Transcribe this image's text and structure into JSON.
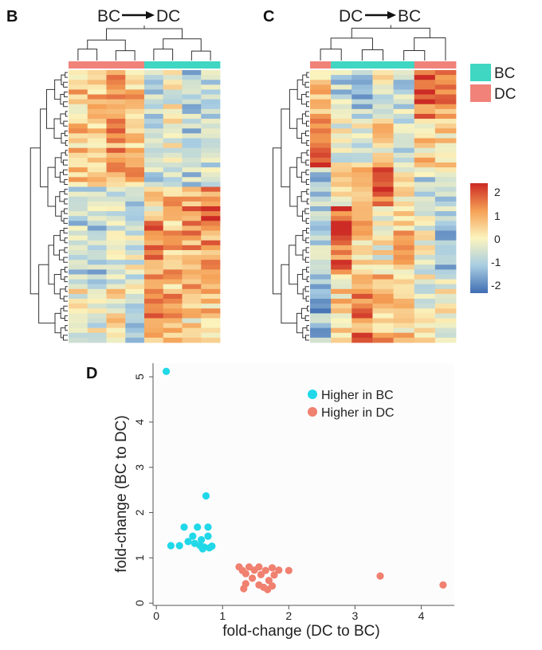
{
  "panels": {
    "b": {
      "label": "B",
      "title_left": "BC",
      "title_right": "DC",
      "groups": [
        "DC",
        "DC",
        "DC",
        "DC",
        "BC",
        "BC",
        "BC",
        "BC"
      ]
    },
    "c": {
      "label": "C",
      "title_left": "DC",
      "title_right": "BC",
      "groups": [
        "DC",
        "BC",
        "BC",
        "BC",
        "BC",
        "DC",
        "DC"
      ]
    },
    "d": {
      "label": "D"
    }
  },
  "group_legend": {
    "items": [
      {
        "label": "BC",
        "color": "#3fd6c2"
      },
      {
        "label": "DC",
        "color": "#f0827a"
      }
    ]
  },
  "color_scale": {
    "ticks": [
      "2",
      "1",
      "0",
      "-1",
      "-2"
    ],
    "min": -2,
    "max": 2,
    "stops": [
      "#3f6db2",
      "#a8cde2",
      "#fbf4be",
      "#f5a055",
      "#cc2a24"
    ]
  },
  "chart_data": [
    {
      "type": "heatmap",
      "panel": "B",
      "title": "BC → DC",
      "columns": 8,
      "rows": 56,
      "column_groups": [
        "DC",
        "DC",
        "DC",
        "DC",
        "BC",
        "BC",
        "BC",
        "BC"
      ],
      "row_blocks": [
        {
          "from_row": 0,
          "to_row": 24,
          "pattern": [
            0.5,
            0.7,
            1.0,
            0.6,
            -0.6,
            -0.2,
            -0.9,
            -0.5
          ]
        },
        {
          "from_row": 24,
          "to_row": 31,
          "pattern": [
            -0.9,
            -0.6,
            -0.5,
            -0.7,
            0.3,
            0.6,
            1.0,
            1.3
          ]
        },
        {
          "from_row": 31,
          "to_row": 45,
          "pattern": [
            -0.7,
            -0.8,
            -0.5,
            -0.3,
            1.1,
            0.6,
            0.9,
            1.0
          ]
        },
        {
          "from_row": 45,
          "to_row": 56,
          "pattern": [
            0.0,
            -0.3,
            0.1,
            -0.6,
            1.0,
            0.8,
            0.3,
            0.5
          ]
        }
      ],
      "value_range": [
        -2,
        2
      ]
    },
    {
      "type": "heatmap",
      "panel": "C",
      "title": "DC → BC",
      "columns": 7,
      "rows": 56,
      "column_groups": [
        "DC",
        "BC",
        "BC",
        "BC",
        "BC",
        "DC",
        "DC"
      ],
      "row_blocks": [
        {
          "from_row": 0,
          "to_row": 10,
          "pattern": [
            0.4,
            -0.7,
            -0.9,
            -0.2,
            -0.6,
            1.5,
            1.0
          ]
        },
        {
          "from_row": 10,
          "to_row": 20,
          "pattern": [
            1.6,
            -0.2,
            -0.3,
            0.2,
            -0.5,
            0.4,
            0.2
          ]
        },
        {
          "from_row": 20,
          "to_row": 28,
          "pattern": [
            -0.9,
            0.3,
            0.6,
            1.4,
            0.2,
            -0.6,
            -0.5
          ]
        },
        {
          "from_row": 28,
          "to_row": 42,
          "pattern": [
            -0.6,
            1.3,
            0.5,
            0.0,
            0.6,
            -0.3,
            -0.9
          ]
        },
        {
          "from_row": 42,
          "to_row": 56,
          "pattern": [
            -1.2,
            0.4,
            1.2,
            0.7,
            0.4,
            -0.1,
            -0.2
          ]
        }
      ],
      "value_range": [
        -2,
        2
      ]
    },
    {
      "type": "scatter",
      "panel": "D",
      "xlabel": "fold-change (DC to BC)",
      "ylabel": "fold-change (BC to DC)",
      "xlim": [
        -0.05,
        4.5
      ],
      "ylim": [
        -0.05,
        5.3
      ],
      "xticks": [
        "0",
        "1",
        "2",
        "3",
        "4"
      ],
      "yticks": [
        "0",
        "1",
        "2",
        "3",
        "4",
        "5"
      ],
      "legend_position": "top-right",
      "series": [
        {
          "name": "Higher in BC",
          "color": "#20d8e8",
          "points": [
            {
              "x": 0.15,
              "y": 5.12
            },
            {
              "x": 0.75,
              "y": 2.37
            },
            {
              "x": 0.42,
              "y": 1.68
            },
            {
              "x": 0.62,
              "y": 1.68
            },
            {
              "x": 0.78,
              "y": 1.68
            },
            {
              "x": 0.55,
              "y": 1.48
            },
            {
              "x": 0.78,
              "y": 1.48
            },
            {
              "x": 0.48,
              "y": 1.36
            },
            {
              "x": 0.68,
              "y": 1.4
            },
            {
              "x": 0.58,
              "y": 1.32
            },
            {
              "x": 0.22,
              "y": 1.27
            },
            {
              "x": 0.35,
              "y": 1.27
            },
            {
              "x": 0.66,
              "y": 1.27
            },
            {
              "x": 0.72,
              "y": 1.24
            },
            {
              "x": 0.8,
              "y": 1.22
            },
            {
              "x": 0.84,
              "y": 1.26
            },
            {
              "x": 0.7,
              "y": 1.2
            }
          ]
        },
        {
          "name": "Higher in DC",
          "color": "#f0806f",
          "points": [
            {
              "x": 1.25,
              "y": 0.8
            },
            {
              "x": 1.4,
              "y": 0.8
            },
            {
              "x": 1.55,
              "y": 0.8
            },
            {
              "x": 1.75,
              "y": 0.78
            },
            {
              "x": 1.3,
              "y": 0.72
            },
            {
              "x": 1.48,
              "y": 0.73
            },
            {
              "x": 1.65,
              "y": 0.72
            },
            {
              "x": 1.85,
              "y": 0.73
            },
            {
              "x": 2.0,
              "y": 0.72
            },
            {
              "x": 1.35,
              "y": 0.65
            },
            {
              "x": 1.58,
              "y": 0.63
            },
            {
              "x": 1.78,
              "y": 0.62
            },
            {
              "x": 1.45,
              "y": 0.55
            },
            {
              "x": 1.7,
              "y": 0.5
            },
            {
              "x": 1.35,
              "y": 0.43
            },
            {
              "x": 1.55,
              "y": 0.4
            },
            {
              "x": 1.62,
              "y": 0.35
            },
            {
              "x": 1.75,
              "y": 0.38
            },
            {
              "x": 1.32,
              "y": 0.32
            },
            {
              "x": 1.68,
              "y": 0.3
            },
            {
              "x": 3.38,
              "y": 0.6
            },
            {
              "x": 4.33,
              "y": 0.4
            }
          ]
        }
      ]
    }
  ]
}
